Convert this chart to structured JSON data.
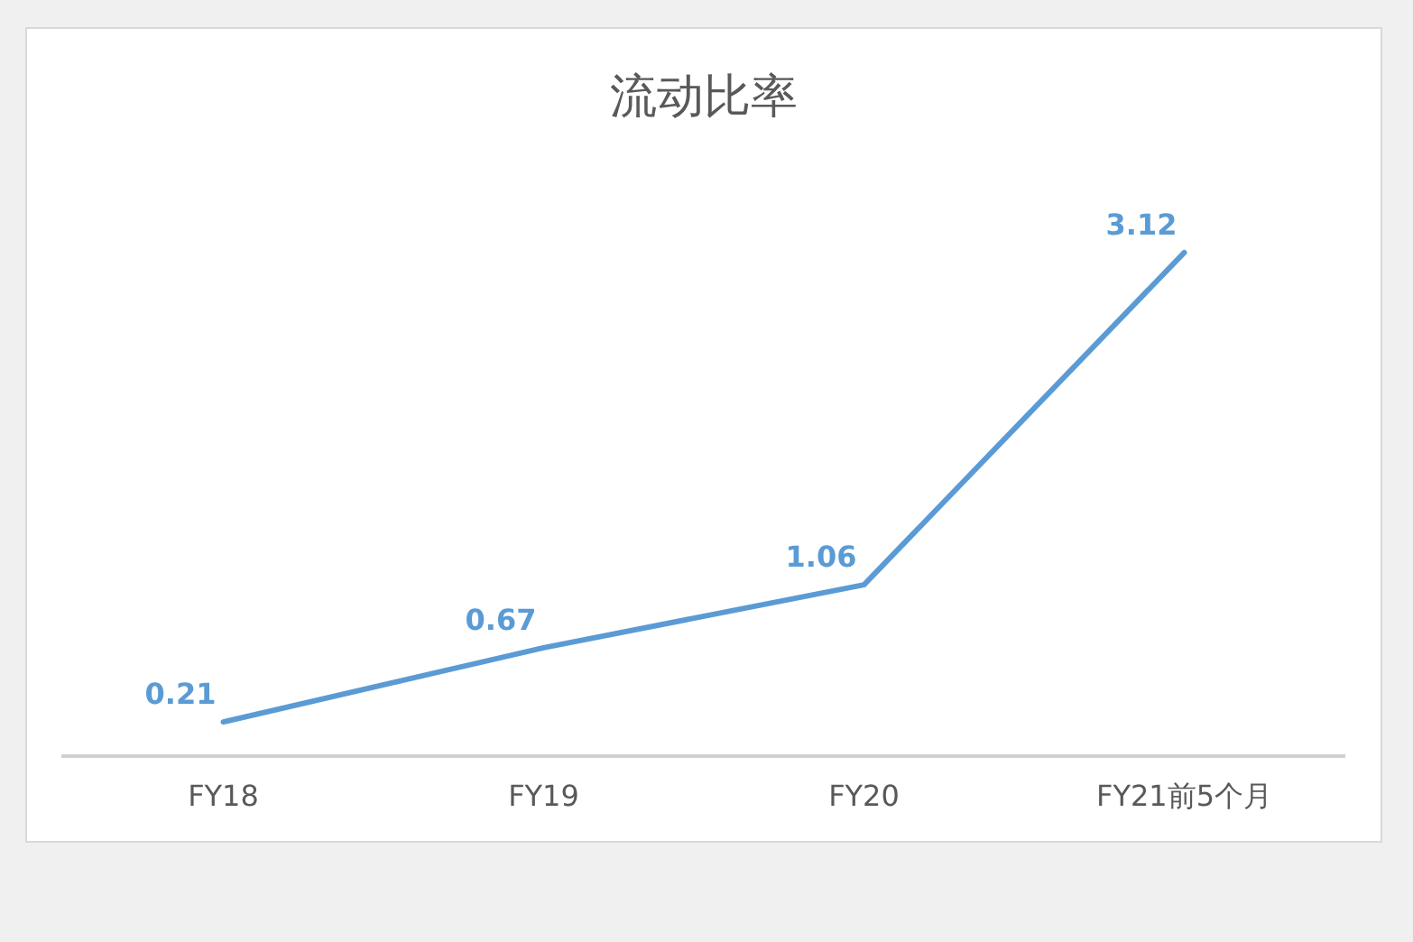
{
  "chart_data": {
    "type": "line",
    "title": "流动比率",
    "categories": [
      "FY18",
      "FY19",
      "FY20",
      "FY21前5个月"
    ],
    "series": [
      {
        "color": "#5b9bd5",
        "values": [
          0.21,
          0.67,
          1.06,
          3.12
        ]
      }
    ],
    "data_labels": true,
    "grid": false,
    "legend": false,
    "marker": "none",
    "line_style": "solid",
    "tick_labels": "x"
  }
}
